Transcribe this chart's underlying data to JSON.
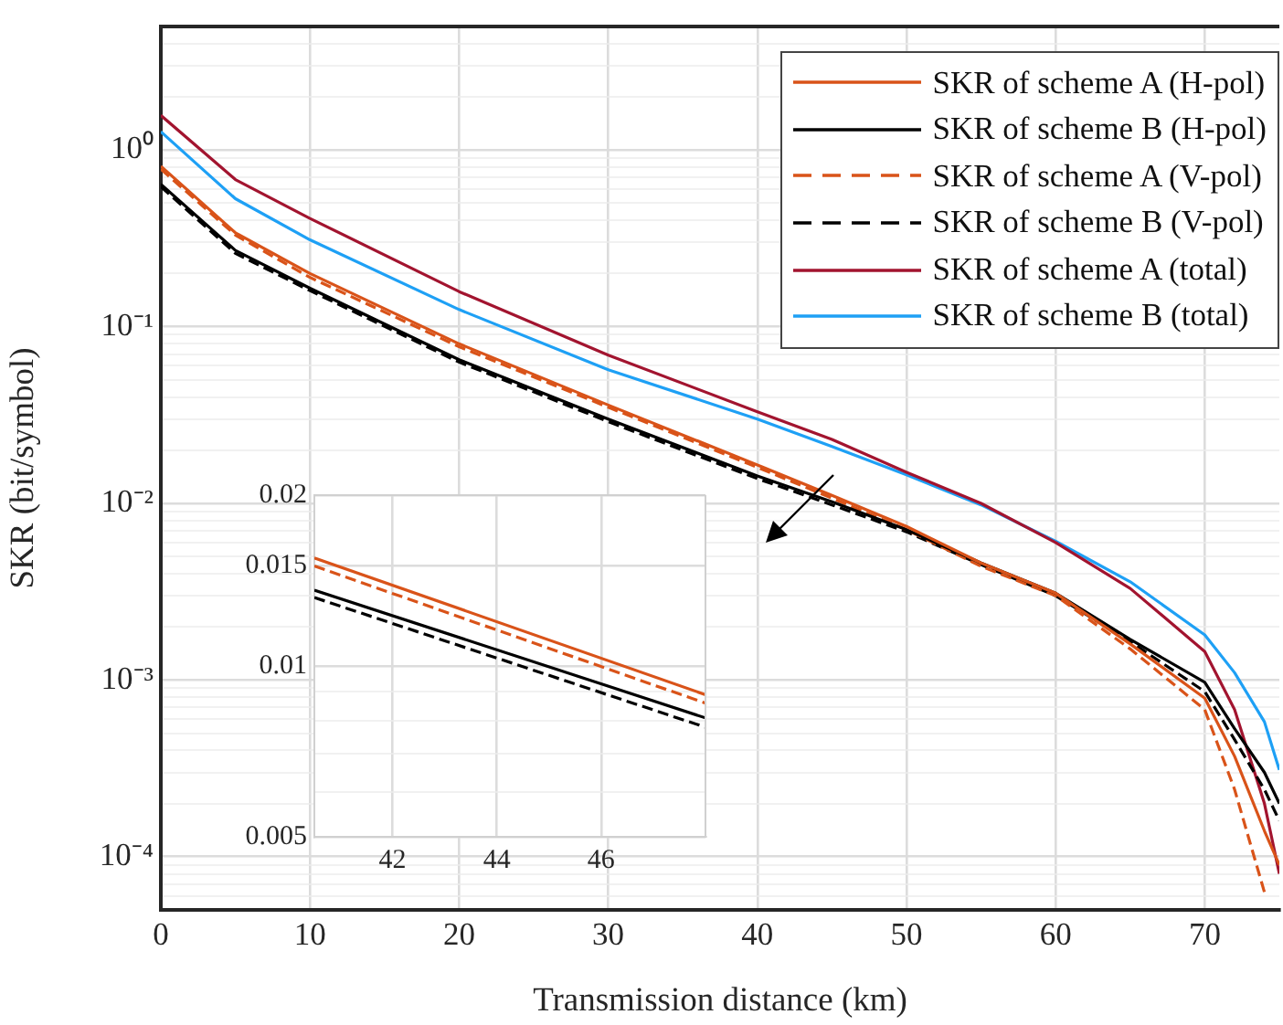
{
  "chart_data": [
    {
      "type": "line",
      "xlabel": "Transmission distance (km)",
      "ylabel": "SKR (bit/symbol)",
      "log": "y",
      "grid": true,
      "legend": "top right",
      "x": [
        0,
        5,
        10,
        20,
        30,
        40,
        45,
        50,
        55,
        60,
        65,
        70,
        72,
        74,
        75
      ],
      "xlim": [
        0,
        75
      ],
      "xticks": [
        0,
        10,
        20,
        30,
        40,
        50,
        60,
        70
      ],
      "ylim": [
        5e-05,
        5
      ],
      "yticks": [
        {
          "value": 0.0001,
          "label": "10⁻⁴"
        },
        {
          "value": 0.001,
          "label": "10⁻³"
        },
        {
          "value": 0.01,
          "label": "10⁻²"
        },
        {
          "value": 0.1,
          "label": "10⁻¹"
        },
        {
          "value": 1,
          "label": "10⁰"
        },
        {
          "value": 5e-05,
          "label": null
        },
        {
          "value": 6e-05,
          "label": null
        },
        {
          "value": 7e-05,
          "label": null
        },
        {
          "value": 8e-05,
          "label": null
        },
        {
          "value": 9e-05,
          "label": null
        },
        {
          "value": 0.0002,
          "label": null
        },
        {
          "value": 0.0003,
          "label": null
        },
        {
          "value": 0.0004,
          "label": null
        },
        {
          "value": 0.0005,
          "label": null
        },
        {
          "value": 0.0006,
          "label": null
        },
        {
          "value": 0.0007,
          "label": null
        },
        {
          "value": 0.0008,
          "label": null
        },
        {
          "value": 0.0009,
          "label": null
        },
        {
          "value": 0.002,
          "label": null
        },
        {
          "value": 0.003,
          "label": null
        },
        {
          "value": 0.004,
          "label": null
        },
        {
          "value": 0.005,
          "label": null
        },
        {
          "value": 0.006,
          "label": null
        },
        {
          "value": 0.007,
          "label": null
        },
        {
          "value": 0.008,
          "label": null
        },
        {
          "value": 0.009,
          "label": null
        },
        {
          "value": 0.02,
          "label": null
        },
        {
          "value": 0.03,
          "label": null
        },
        {
          "value": 0.04,
          "label": null
        },
        {
          "value": 0.05,
          "label": null
        },
        {
          "value": 0.06,
          "label": null
        },
        {
          "value": 0.07,
          "label": null
        },
        {
          "value": 0.08,
          "label": null
        },
        {
          "value": 0.09,
          "label": null
        },
        {
          "value": 0.2,
          "label": null
        },
        {
          "value": 0.3,
          "label": null
        },
        {
          "value": 0.4,
          "label": null
        },
        {
          "value": 0.5,
          "label": null
        },
        {
          "value": 0.6,
          "label": null
        },
        {
          "value": 0.7,
          "label": null
        },
        {
          "value": 0.8,
          "label": null
        },
        {
          "value": 0.9,
          "label": null
        },
        {
          "value": 2,
          "label": null
        },
        {
          "value": 3,
          "label": null
        },
        {
          "value": 4,
          "label": null
        },
        {
          "value": 5,
          "label": null
        }
      ],
      "series": [
        {
          "name": "SKR of scheme A (H-pol)",
          "color": "#d95319",
          "line_style": "solid",
          "values": [
            0.81,
            0.34,
            0.2,
            0.08,
            0.036,
            0.0165,
            0.0111,
            0.0074,
            0.0046,
            0.0031,
            0.0016,
            0.00079,
            0.00037,
            0.00014,
            9e-05
          ]
        },
        {
          "name": "SKR of scheme B (H-pol)",
          "color": "#000000",
          "line_style": "solid",
          "values": [
            0.64,
            0.27,
            0.165,
            0.065,
            0.03,
            0.0143,
            0.0102,
            0.0071,
            0.0046,
            0.0031,
            0.0017,
            0.00097,
            0.00053,
            0.0003,
            0.0002
          ]
        },
        {
          "name": "SKR of scheme A (V-pol)",
          "color": "#d95319",
          "line_style": "dashed",
          "values": [
            0.78,
            0.33,
            0.19,
            0.077,
            0.035,
            0.016,
            0.0107,
            0.0071,
            0.0044,
            0.003,
            0.0015,
            0.00068,
            0.00024,
            6.3e-05,
            null
          ]
        },
        {
          "name": "SKR of scheme B (V-pol)",
          "color": "#000000",
          "line_style": "dashed",
          "values": [
            0.62,
            0.26,
            0.16,
            0.063,
            0.029,
            0.0138,
            0.0098,
            0.0069,
            0.0045,
            0.003,
            0.00165,
            0.00086,
            0.00046,
            0.00024,
            0.00016
          ]
        },
        {
          "name": "SKR of scheme A (total)",
          "color": "#a2142f",
          "line_style": "solid",
          "values": [
            1.57,
            0.68,
            0.41,
            0.158,
            0.069,
            0.033,
            0.023,
            0.015,
            0.01,
            0.006,
            0.0033,
            0.00145,
            0.00068,
            0.0002,
            8e-05
          ]
        },
        {
          "name": "SKR of scheme B (total)",
          "color": "#1ea0f5",
          "line_style": "solid",
          "values": [
            1.27,
            0.53,
            0.31,
            0.125,
            0.057,
            0.03,
            0.021,
            0.0145,
            0.0098,
            0.0061,
            0.0036,
            0.0018,
            0.0011,
            0.00058,
            0.00031
          ]
        }
      ]
    },
    {
      "type": "line",
      "log": "y",
      "grid": true,
      "x": [
        40.5,
        48
      ],
      "xlim": [
        40.5,
        48
      ],
      "xticks": [
        42,
        44,
        46
      ],
      "ylim": [
        0.005,
        0.02
      ],
      "yticks": [
        0.005,
        0.01,
        0.015,
        0.02,
        {
          "value": 0.006,
          "label": null
        },
        {
          "value": 0.007,
          "label": null
        },
        {
          "value": 0.008,
          "label": null
        },
        {
          "value": 0.009,
          "label": null
        }
      ],
      "series": [
        {
          "color": "#d95319",
          "line_style": "solid",
          "values": [
            0.0155,
            0.0089
          ]
        },
        {
          "color": "#000000",
          "line_style": "solid",
          "values": [
            0.0136,
            0.0081
          ]
        },
        {
          "color": "#d95319",
          "line_style": "dashed",
          "values": [
            0.015,
            0.0086
          ]
        },
        {
          "color": "#000000",
          "line_style": "dashed",
          "values": [
            0.0132,
            0.0078
          ]
        }
      ]
    }
  ]
}
